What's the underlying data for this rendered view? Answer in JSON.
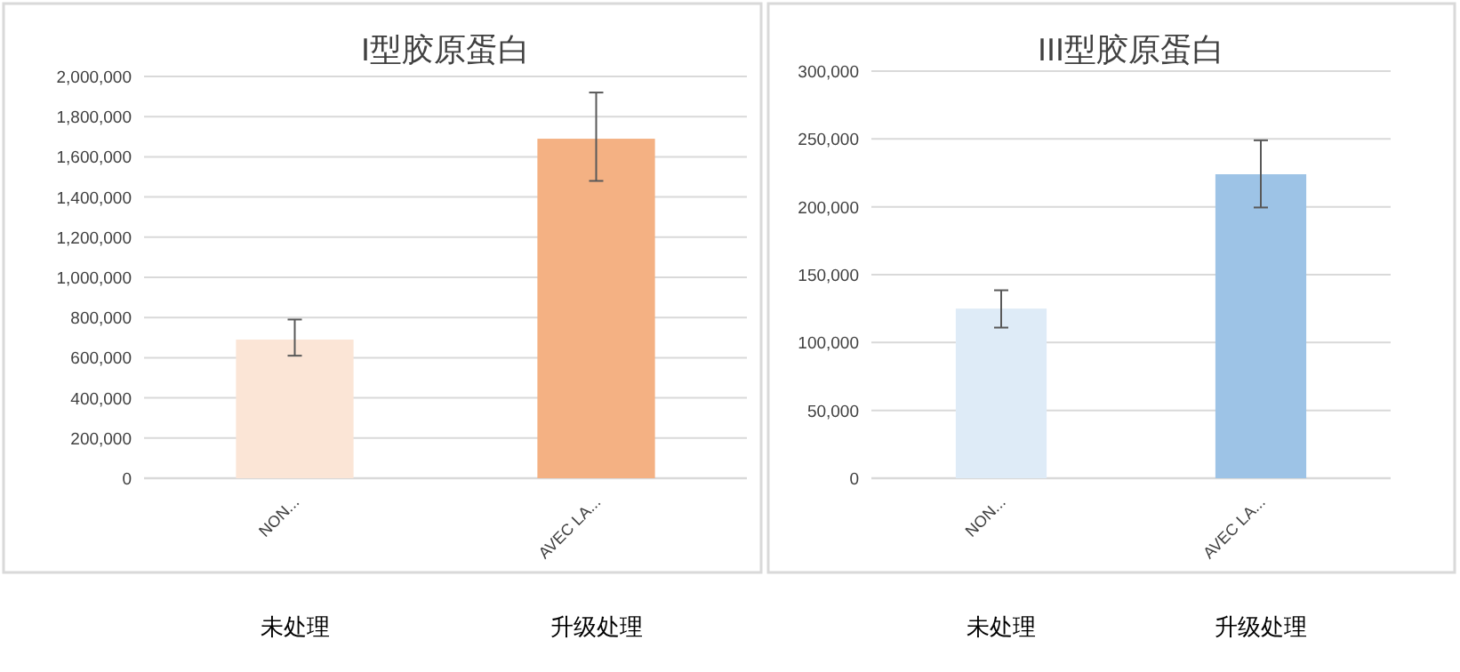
{
  "chart_data": [
    {
      "type": "bar",
      "title": "I型胶原蛋白",
      "categories": [
        "NON...",
        "AVEC LA..."
      ],
      "values": [
        690000,
        1690000
      ],
      "colors": [
        "#fbe5d6",
        "#f4b183"
      ],
      "errors": [
        [
          610000,
          790000
        ],
        [
          1480000,
          1920000
        ]
      ],
      "ylim": [
        0,
        2000000
      ],
      "yticks": [
        {
          "value": 0,
          "label": "0"
        },
        {
          "value": 200000,
          "label": "200,000"
        },
        {
          "value": 400000,
          "label": "400,000"
        },
        {
          "value": 600000,
          "label": "600,000"
        },
        {
          "value": 800000,
          "label": "800,000"
        },
        {
          "value": 1000000,
          "label": "1,000,000"
        },
        {
          "value": 1200000,
          "label": "1,200,000"
        },
        {
          "value": 1400000,
          "label": "1,400,000"
        },
        {
          "value": 1600000,
          "label": "1,600,000"
        },
        {
          "value": 1800000,
          "label": "1,800,000"
        },
        {
          "value": 2000000,
          "label": "2,000,000"
        }
      ],
      "grid": "y",
      "annotations": [
        "未处理",
        "升级处理"
      ]
    },
    {
      "type": "bar",
      "title": "III型胶原蛋白",
      "categories": [
        "NON...",
        "AVEC LA..."
      ],
      "values": [
        125000,
        224000
      ],
      "colors": [
        "#deebf7",
        "#9dc3e6"
      ],
      "errors": [
        [
          111000,
          138500
        ],
        [
          199500,
          249000
        ]
      ],
      "ylim": [
        0,
        300000
      ],
      "yticks": [
        {
          "value": 0,
          "label": "0"
        },
        {
          "value": 50000,
          "label": "50,000"
        },
        {
          "value": 100000,
          "label": "100,000"
        },
        {
          "value": 150000,
          "label": "150,000"
        },
        {
          "value": 200000,
          "label": "200,000"
        },
        {
          "value": 250000,
          "label": "250,000"
        },
        {
          "value": 300000,
          "label": "300,000"
        }
      ],
      "grid": "y",
      "annotations": [
        "未处理",
        "升级处理"
      ]
    }
  ]
}
